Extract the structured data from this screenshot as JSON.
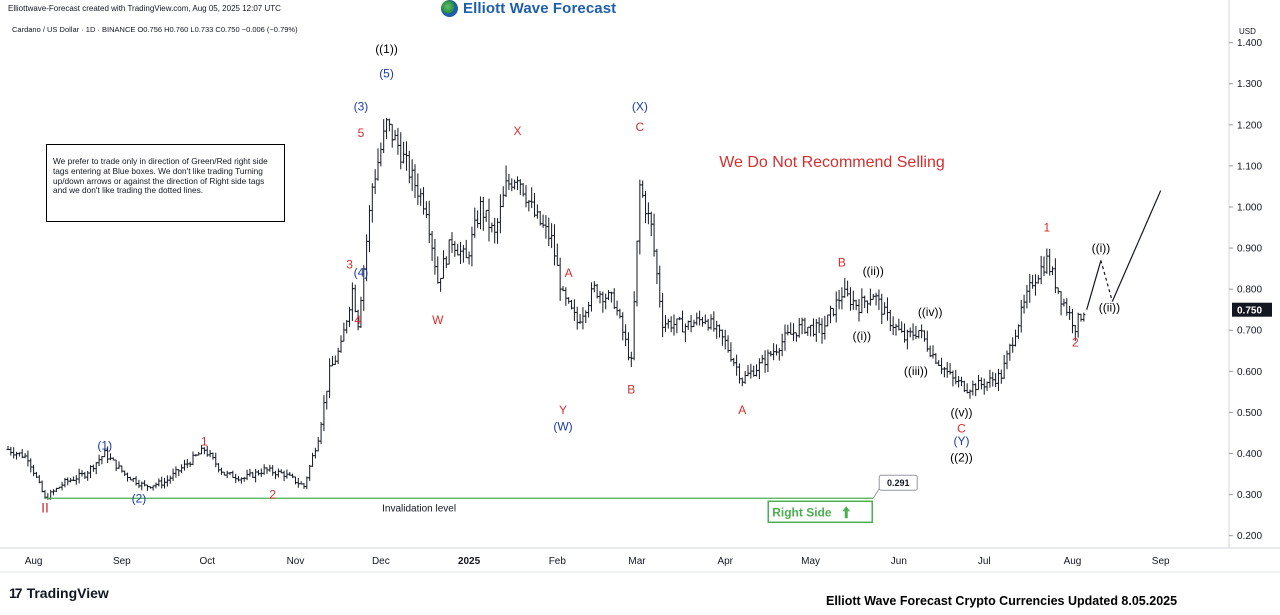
{
  "header": {
    "created_line": "Elliottwave-Forecast created with TradingView.com, Aug 05, 2025 12:07 UTC",
    "brand": "Elliott Wave Forecast"
  },
  "symbol": {
    "line": "Cardano / US Dollar · 1D · BINANCE  O0.756  H0.760  L0.733  C0.750  −0.006 (−0.79%)"
  },
  "note": "We prefer to trade only in direction of Green/Red right side tags entering at Blue boxes. We don't like trading Turning up/down arrows or against the direction of Right side tags and we don't like trading the dotted lines.",
  "footer": {
    "tradingview": "TradingView",
    "title": "Elliott Wave Forecast Crypto Currencies Updated 8.05.2025"
  },
  "colors": {
    "up": "#131722",
    "red": "#d32f2f",
    "blue": "#1a3ca8",
    "green": "#4caf50",
    "axis": "#131722"
  },
  "chart_data": {
    "type": "ohlc",
    "currency_label": "USD",
    "ylim": [
      0.17,
      1.46
    ],
    "y_ticks": [
      0.2,
      0.3,
      0.4,
      0.5,
      0.6,
      0.7,
      0.8,
      0.9,
      1.0,
      1.1,
      1.2,
      1.3,
      1.4
    ],
    "x_range": [
      "2024-07-23",
      "2025-09-25"
    ],
    "x_ticks": [
      {
        "label": "Aug",
        "date": "2024-08-01",
        "bold": false
      },
      {
        "label": "Sep",
        "date": "2024-09-01",
        "bold": false
      },
      {
        "label": "Oct",
        "date": "2024-10-01",
        "bold": false
      },
      {
        "label": "Nov",
        "date": "2024-11-01",
        "bold": false
      },
      {
        "label": "Dec",
        "date": "2024-12-01",
        "bold": false
      },
      {
        "label": "2025",
        "date": "2025-01-01",
        "bold": true
      },
      {
        "label": "Feb",
        "date": "2025-02-01",
        "bold": false
      },
      {
        "label": "Mar",
        "date": "2025-03-01",
        "bold": false
      },
      {
        "label": "Apr",
        "date": "2025-04-01",
        "bold": false
      },
      {
        "label": "May",
        "date": "2025-05-01",
        "bold": false
      },
      {
        "label": "Jun",
        "date": "2025-06-01",
        "bold": false
      },
      {
        "label": "Jul",
        "date": "2025-07-01",
        "bold": false
      },
      {
        "label": "Aug",
        "date": "2025-08-01",
        "bold": false
      },
      {
        "label": "Sep",
        "date": "2025-09-01",
        "bold": false
      }
    ],
    "last_price": "0.750",
    "price_path": [
      [
        "2024-07-23",
        0.41
      ],
      [
        "2024-07-30",
        0.39
      ],
      [
        "2024-08-05",
        0.29
      ],
      [
        "2024-08-12",
        0.33
      ],
      [
        "2024-08-19",
        0.35
      ],
      [
        "2024-08-26",
        0.4
      ],
      [
        "2024-09-02",
        0.35
      ],
      [
        "2024-09-09",
        0.32
      ],
      [
        "2024-09-16",
        0.33
      ],
      [
        "2024-09-23",
        0.37
      ],
      [
        "2024-09-30",
        0.41
      ],
      [
        "2024-10-07",
        0.35
      ],
      [
        "2024-10-14",
        0.34
      ],
      [
        "2024-10-21",
        0.36
      ],
      [
        "2024-10-28",
        0.35
      ],
      [
        "2024-11-04",
        0.32
      ],
      [
        "2024-11-09",
        0.44
      ],
      [
        "2024-11-13",
        0.6
      ],
      [
        "2024-11-17",
        0.66
      ],
      [
        "2024-11-21",
        0.8
      ],
      [
        "2024-11-23",
        0.72
      ],
      [
        "2024-11-28",
        1.05
      ],
      [
        "2024-12-03",
        1.2
      ],
      [
        "2024-12-07",
        1.15
      ],
      [
        "2024-12-12",
        1.07
      ],
      [
        "2024-12-17",
        1.0
      ],
      [
        "2024-12-21",
        0.82
      ],
      [
        "2024-12-26",
        0.92
      ],
      [
        "2024-12-31",
        0.87
      ],
      [
        "2025-01-05",
        1.0
      ],
      [
        "2025-01-10",
        0.93
      ],
      [
        "2025-01-14",
        1.05
      ],
      [
        "2025-01-18",
        1.08
      ],
      [
        "2025-01-24",
        0.98
      ],
      [
        "2025-01-30",
        0.92
      ],
      [
        "2025-02-03",
        0.78
      ],
      [
        "2025-02-08",
        0.72
      ],
      [
        "2025-02-14",
        0.8
      ],
      [
        "2025-02-21",
        0.77
      ],
      [
        "2025-02-27",
        0.62
      ],
      [
        "2025-03-02",
        1.05
      ],
      [
        "2025-03-06",
        0.95
      ],
      [
        "2025-03-10",
        0.72
      ],
      [
        "2025-03-18",
        0.71
      ],
      [
        "2025-03-25",
        0.73
      ],
      [
        "2025-04-01",
        0.67
      ],
      [
        "2025-04-07",
        0.58
      ],
      [
        "2025-04-14",
        0.62
      ],
      [
        "2025-04-22",
        0.68
      ],
      [
        "2025-04-28",
        0.71
      ],
      [
        "2025-05-05",
        0.7
      ],
      [
        "2025-05-12",
        0.79
      ],
      [
        "2025-05-18",
        0.76
      ],
      [
        "2025-05-23",
        0.79
      ],
      [
        "2025-05-27",
        0.74
      ],
      [
        "2025-06-03",
        0.68
      ],
      [
        "2025-06-08",
        0.7
      ],
      [
        "2025-06-13",
        0.64
      ],
      [
        "2025-06-20",
        0.58
      ],
      [
        "2025-06-25",
        0.56
      ],
      [
        "2025-07-01",
        0.57
      ],
      [
        "2025-07-07",
        0.59
      ],
      [
        "2025-07-12",
        0.7
      ],
      [
        "2025-07-18",
        0.82
      ],
      [
        "2025-07-23",
        0.87
      ],
      [
        "2025-07-28",
        0.78
      ],
      [
        "2025-08-02",
        0.71
      ],
      [
        "2025-08-05",
        0.75
      ]
    ],
    "wave_labels": [
      {
        "text": "II",
        "date": "2024-08-05",
        "price": 0.281,
        "color": "red",
        "pos": "below"
      },
      {
        "text": "(1)",
        "date": "2024-08-26",
        "price": 0.405,
        "color": "blue",
        "pos": "above"
      },
      {
        "text": "(2)",
        "date": "2024-09-07",
        "price": 0.305,
        "color": "blue",
        "pos": "below"
      },
      {
        "text": "1",
        "date": "2024-09-30",
        "price": 0.415,
        "color": "red",
        "pos": "above"
      },
      {
        "text": "2",
        "date": "2024-10-24",
        "price": 0.315,
        "color": "red",
        "pos": "below"
      },
      {
        "text": "3",
        "date": "2024-11-20",
        "price": 0.845,
        "color": "red",
        "pos": "above"
      },
      {
        "text": "4",
        "date": "2024-11-21",
        "price": 0.725,
        "color": "red",
        "pos": "right"
      },
      {
        "text": "(4)",
        "date": "2024-11-24",
        "price": 0.855,
        "color": "blue",
        "pos": "below"
      },
      {
        "text": "5",
        "date": "2024-11-24",
        "price": 1.165,
        "color": "red",
        "pos": "above"
      },
      {
        "text": "(3)",
        "date": "2024-11-24",
        "price": 1.23,
        "color": "blue",
        "pos": "above"
      },
      {
        "text": "(5)",
        "date": "2024-12-03",
        "price": 1.31,
        "color": "blue",
        "pos": "above"
      },
      {
        "text": "((1))",
        "date": "2024-12-03",
        "price": 1.37,
        "color": "black",
        "pos": "above"
      },
      {
        "text": "W",
        "date": "2024-12-21",
        "price": 0.74,
        "color": "red",
        "pos": "below"
      },
      {
        "text": "X",
        "date": "2025-01-18",
        "price": 1.17,
        "color": "red",
        "pos": "above"
      },
      {
        "text": "A",
        "date": "2025-02-05",
        "price": 0.825,
        "color": "red",
        "pos": "above"
      },
      {
        "text": "Y",
        "date": "2025-02-03",
        "price": 0.52,
        "color": "red",
        "pos": "below"
      },
      {
        "text": "(W)",
        "date": "2025-02-03",
        "price": 0.48,
        "color": "blue",
        "pos": "below"
      },
      {
        "text": "B",
        "date": "2025-02-27",
        "price": 0.57,
        "color": "red",
        "pos": "below"
      },
      {
        "text": "C",
        "date": "2025-03-02",
        "price": 1.18,
        "color": "red",
        "pos": "above"
      },
      {
        "text": "(X)",
        "date": "2025-03-02",
        "price": 1.23,
        "color": "blue",
        "pos": "above"
      },
      {
        "text": "A",
        "date": "2025-04-07",
        "price": 0.52,
        "color": "red",
        "pos": "below"
      },
      {
        "text": "B",
        "date": "2025-05-12",
        "price": 0.85,
        "color": "red",
        "pos": "above"
      },
      {
        "text": "((ii))",
        "date": "2025-05-23",
        "price": 0.83,
        "color": "black",
        "pos": "above"
      },
      {
        "text": "((i))",
        "date": "2025-05-19",
        "price": 0.7,
        "color": "black",
        "pos": "below"
      },
      {
        "text": "((iv))",
        "date": "2025-06-12",
        "price": 0.73,
        "color": "black",
        "pos": "above"
      },
      {
        "text": "((iii))",
        "date": "2025-06-07",
        "price": 0.615,
        "color": "black",
        "pos": "below"
      },
      {
        "text": "((v))",
        "date": "2025-06-23",
        "price": 0.515,
        "color": "black",
        "pos": "below"
      },
      {
        "text": "C",
        "date": "2025-06-23",
        "price": 0.475,
        "color": "red",
        "pos": "below"
      },
      {
        "text": "(Y)",
        "date": "2025-06-23",
        "price": 0.445,
        "color": "blue",
        "pos": "below"
      },
      {
        "text": "((2))",
        "date": "2025-06-23",
        "price": 0.405,
        "color": "black",
        "pos": "below"
      },
      {
        "text": "1",
        "date": "2025-07-23",
        "price": 0.935,
        "color": "red",
        "pos": "above"
      },
      {
        "text": "2",
        "date": "2025-08-02",
        "price": 0.685,
        "color": "red",
        "pos": "below"
      },
      {
        "text": "((i))",
        "date": "2025-08-11",
        "price": 0.885,
        "color": "black",
        "pos": "above"
      },
      {
        "text": "((ii))",
        "date": "2025-08-14",
        "price": 0.77,
        "color": "black",
        "pos": "below"
      }
    ],
    "projection": {
      "solid_1": [
        [
          "2025-08-06",
          0.75
        ],
        [
          "2025-08-11",
          0.87
        ]
      ],
      "dashed": [
        [
          "2025-08-11",
          0.87
        ],
        [
          "2025-08-15",
          0.77
        ]
      ],
      "solid_2": [
        [
          "2025-08-15",
          0.77
        ],
        [
          "2025-09-01",
          1.04
        ]
      ]
    },
    "invalidation": {
      "price": 0.291,
      "price_label": "0.291",
      "label": "Invalidation level",
      "start": "2024-08-05",
      "end": "2025-05-23",
      "right_side_label": "Right Side",
      "right_side_arrow": "up-arrow"
    },
    "annotation_text": "We Do Not Recommend Selling"
  }
}
